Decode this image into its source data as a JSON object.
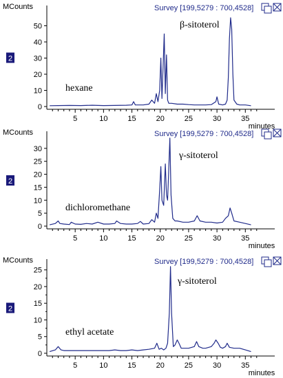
{
  "chart_data": [
    {
      "type": "line",
      "solvent": "hexane",
      "annotation": "β-sitoterol",
      "survey": "Survey [199,5279 : 700,4528]",
      "ylabel": "MCounts",
      "xlabel": "minutes",
      "badge": "2",
      "xlim": [
        0,
        38
      ],
      "ylim": [
        0,
        60
      ],
      "yticks": [
        0,
        10,
        20,
        30,
        40,
        50
      ],
      "xticks": [
        5,
        10,
        15,
        20,
        25,
        30,
        35
      ],
      "color": "#1f2a8a",
      "x": [
        0.5,
        2,
        4,
        6,
        8,
        10,
        12,
        14,
        15,
        15.3,
        15.6,
        17,
        18,
        18.5,
        19,
        19.3,
        19.6,
        19.9,
        20.1,
        20.3,
        20.5,
        20.7,
        20.9,
        21.1,
        21.3,
        21.5,
        22,
        23,
        24,
        25,
        26,
        27,
        28,
        29,
        29.8,
        30,
        30.3,
        31,
        31.5,
        31.8,
        32,
        32.2,
        32.4,
        32.6,
        32.8,
        33,
        33.5,
        34,
        35,
        36
      ],
      "y": [
        0.5,
        0.6,
        0.7,
        0.6,
        0.8,
        0.6,
        0.7,
        0.8,
        1,
        3,
        1,
        1,
        1.5,
        4,
        2,
        8,
        3,
        10,
        30,
        5,
        25,
        45,
        8,
        32,
        4,
        2,
        2,
        1.5,
        1.5,
        1.2,
        1,
        1,
        1,
        1.2,
        3,
        6,
        1.5,
        1,
        1.5,
        4,
        18,
        42,
        55,
        48,
        20,
        4,
        1.5,
        1,
        1,
        0.5
      ]
    },
    {
      "type": "line",
      "solvent": "dichloromethane",
      "annotation": "γ-sitoterol",
      "survey": "Survey [199,5279 : 700,4528]",
      "ylabel": "MCounts",
      "xlabel": "minutes",
      "badge": "2",
      "xlim": [
        0,
        38
      ],
      "ylim": [
        0,
        35
      ],
      "yticks": [
        0,
        5,
        10,
        15,
        20,
        25,
        30
      ],
      "xticks": [
        5,
        10,
        15,
        20,
        25,
        30,
        35
      ],
      "color": "#1f2a8a",
      "x": [
        0.5,
        1.5,
        2,
        2.3,
        3,
        4,
        4.3,
        5,
        6,
        7,
        8,
        9,
        10,
        11,
        12,
        12.3,
        13,
        14,
        15,
        16,
        16.5,
        17,
        18,
        18.5,
        19,
        19.3,
        19.6,
        19.9,
        20.1,
        20.3,
        20.6,
        20.9,
        21.1,
        21.3,
        21.5,
        21.7,
        21.9,
        22.2,
        22.6,
        23,
        24,
        25,
        26,
        26.5,
        27,
        28,
        29,
        30,
        31,
        31.5,
        32,
        32.3,
        32.6,
        33,
        34,
        35,
        36
      ],
      "y": [
        0.5,
        1,
        2,
        1,
        0.8,
        0.6,
        1.5,
        0.8,
        0.7,
        1,
        0.8,
        1.5,
        0.8,
        0.8,
        1,
        2,
        1,
        0.8,
        0.8,
        1,
        1.8,
        0.8,
        1,
        2.5,
        1.5,
        5,
        3,
        14,
        23,
        10,
        8,
        24,
        12,
        10,
        22,
        34,
        12,
        3,
        2,
        2,
        1.5,
        1.5,
        2,
        4,
        2,
        1.5,
        1.5,
        1.2,
        1.5,
        3,
        4,
        7,
        5,
        2,
        1.5,
        1,
        0.5
      ]
    },
    {
      "type": "line",
      "solvent": "ethyl acetate",
      "annotation": "γ-sitoterol",
      "survey": "Survey [199,5279 : 700,4528]",
      "ylabel": "MCounts",
      "xlabel": "minutes",
      "badge": "2",
      "xlim": [
        0,
        38
      ],
      "ylim": [
        0,
        27
      ],
      "yticks": [
        0,
        2.5,
        5,
        7.5,
        10,
        12.5,
        15,
        17.5,
        20,
        22.5,
        25
      ],
      "yticklabels": [
        "0",
        "",
        "5",
        "",
        "10",
        "",
        "15",
        "",
        "20",
        "",
        "25"
      ],
      "xticks": [
        5,
        10,
        15,
        20,
        25,
        30,
        35
      ],
      "color": "#1f2a8a",
      "x": [
        0.5,
        1.5,
        2,
        2.5,
        3,
        4,
        5,
        6,
        7,
        8,
        9,
        10,
        11,
        12,
        13,
        14,
        15,
        16,
        17,
        18,
        19,
        19.4,
        19.8,
        20.2,
        20.6,
        21,
        21.3,
        21.6,
        21.8,
        22,
        22.3,
        22.6,
        23,
        23.3,
        23.7,
        24,
        25,
        26,
        26.4,
        26.8,
        27.5,
        28,
        29,
        29.5,
        29.8,
        30.2,
        30.6,
        31,
        31.5,
        31.8,
        32.2,
        33,
        34,
        35,
        36
      ],
      "y": [
        0.5,
        1,
        2,
        1,
        0.8,
        0.8,
        0.8,
        0.8,
        0.8,
        0.8,
        0.8,
        0.8,
        0.8,
        1,
        0.8,
        0.8,
        1,
        0.8,
        1,
        1.2,
        1.5,
        3,
        1.2,
        1.5,
        1,
        1.5,
        3,
        12,
        26,
        12,
        2,
        2.5,
        4,
        3,
        1.5,
        1.5,
        1.5,
        2,
        3.5,
        2,
        1.5,
        1.5,
        2,
        3,
        4,
        3,
        1.8,
        1.5,
        2,
        3,
        1.8,
        1.5,
        1.5,
        1,
        0.5
      ]
    }
  ]
}
